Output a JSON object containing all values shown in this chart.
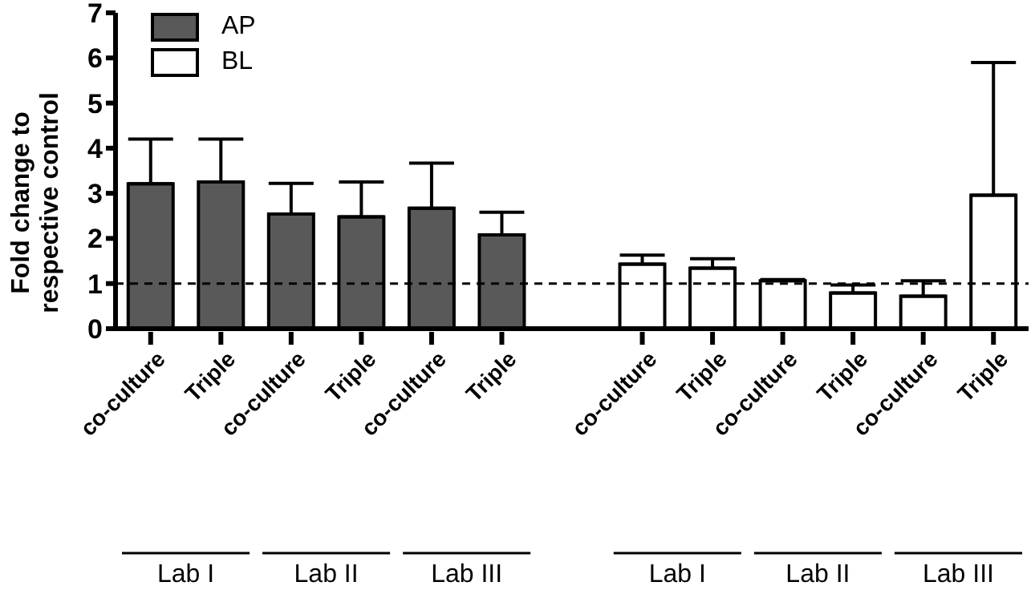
{
  "chart_data": {
    "type": "bar",
    "ylabel": "Fold change to respective control",
    "categories": [
      "co-culture",
      "Triple",
      "co-culture",
      "Triple",
      "co-culture",
      "Triple",
      null,
      "co-culture",
      "Triple",
      "co-culture",
      "Triple",
      "co-culture",
      "Triple"
    ],
    "series": [
      {
        "name": "AP",
        "color": "#595959",
        "values": [
          3.21,
          3.25,
          2.54,
          2.48,
          2.67,
          2.08,
          null,
          null,
          null,
          null,
          null,
          null,
          null
        ],
        "errors": [
          [
            3.21,
            4.2
          ],
          [
            3.25,
            4.2
          ],
          [
            2.54,
            3.22
          ],
          [
            2.48,
            3.25
          ],
          [
            2.67,
            3.67
          ],
          [
            2.08,
            2.58
          ],
          null,
          null,
          null,
          null,
          null,
          null,
          null
        ]
      },
      {
        "name": "BL",
        "color": "#ffffff",
        "values": [
          null,
          null,
          null,
          null,
          null,
          null,
          null,
          1.43,
          1.34,
          1.06,
          0.79,
          0.72,
          2.96
        ],
        "errors": [
          null,
          null,
          null,
          null,
          null,
          null,
          null,
          [
            1.43,
            1.63
          ],
          [
            1.34,
            1.55
          ],
          [
            1.06,
            1.09
          ],
          [
            0.79,
            0.97
          ],
          [
            0.72,
            1.06
          ],
          [
            2.96,
            5.9
          ]
        ]
      }
    ],
    "ylim": [
      0,
      7
    ],
    "yticks": [
      0,
      1,
      2,
      3,
      4,
      5,
      6,
      7
    ],
    "grid": false,
    "legend": "top left",
    "ref_lines": [
      {
        "axis": "y",
        "value": 1,
        "line_style": "dashed",
        "color": "#000000"
      }
    ],
    "annotations": [
      "Lab I",
      "Lab II",
      "Lab III",
      "Lab I",
      "Lab II",
      "Lab III"
    ]
  }
}
